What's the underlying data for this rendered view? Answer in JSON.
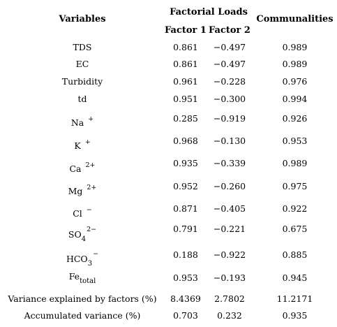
{
  "headers": {
    "variables": "Variables",
    "factorial_loads": "Factorial Loads",
    "factor1": "Factor 1",
    "factor2": "Factor 2",
    "communalities": "Communalities"
  },
  "rows": [
    {
      "base": "TDS",
      "sub": "",
      "sup": "",
      "f1": "0.861",
      "f2": "−0.497",
      "com": "0.989"
    },
    {
      "base": "EC",
      "sub": "",
      "sup": "",
      "f1": "0.861",
      "f2": "−0.497",
      "com": "0.989"
    },
    {
      "base": "Turbidity",
      "sub": "",
      "sup": "",
      "f1": "0.961",
      "f2": "−0.228",
      "com": "0.976"
    },
    {
      "base": "td",
      "sub": "",
      "sup": "",
      "f1": "0.951",
      "f2": "−0.300",
      "com": "0.994"
    },
    {
      "base": "Na",
      "sub": "",
      "sup": "+",
      "f1": "0.285",
      "f2": "−0.919",
      "com": "0.926"
    },
    {
      "base": "K",
      "sub": "",
      "sup": "+",
      "f1": "0.968",
      "f2": "−0.130",
      "com": "0.953"
    },
    {
      "base": "Ca",
      "sub": "",
      "sup": "2+",
      "f1": "0.935",
      "f2": "−0.339",
      "com": "0.989"
    },
    {
      "base": "Mg",
      "sub": "",
      "sup": "2+",
      "f1": "0.952",
      "f2": "−0.260",
      "com": "0.975"
    },
    {
      "base": "Cl",
      "sub": "",
      "sup": "−",
      "f1": "0.871",
      "f2": "−0.405",
      "com": "0.922"
    },
    {
      "base": "SO",
      "sub": "4",
      "sup": "2−",
      "f1": "0.791",
      "f2": "−0.221",
      "com": "0.675"
    },
    {
      "base": "HCO",
      "sub": "3",
      "sup": "−",
      "f1": "0.188",
      "f2": "−0.922",
      "com": "0.885"
    },
    {
      "base": "Fe",
      "sub": "total",
      "sup": "",
      "f1": "0.953",
      "f2": "−0.193",
      "com": "0.945"
    }
  ],
  "summary": [
    {
      "label": "Variance explained by factors (%)",
      "f1": "8.4369",
      "f2": "2.7802",
      "com": "11.2171"
    },
    {
      "label": "Accumulated variance (%)",
      "f1": "0.703",
      "f2": "0.232",
      "com": "0.935"
    }
  ]
}
